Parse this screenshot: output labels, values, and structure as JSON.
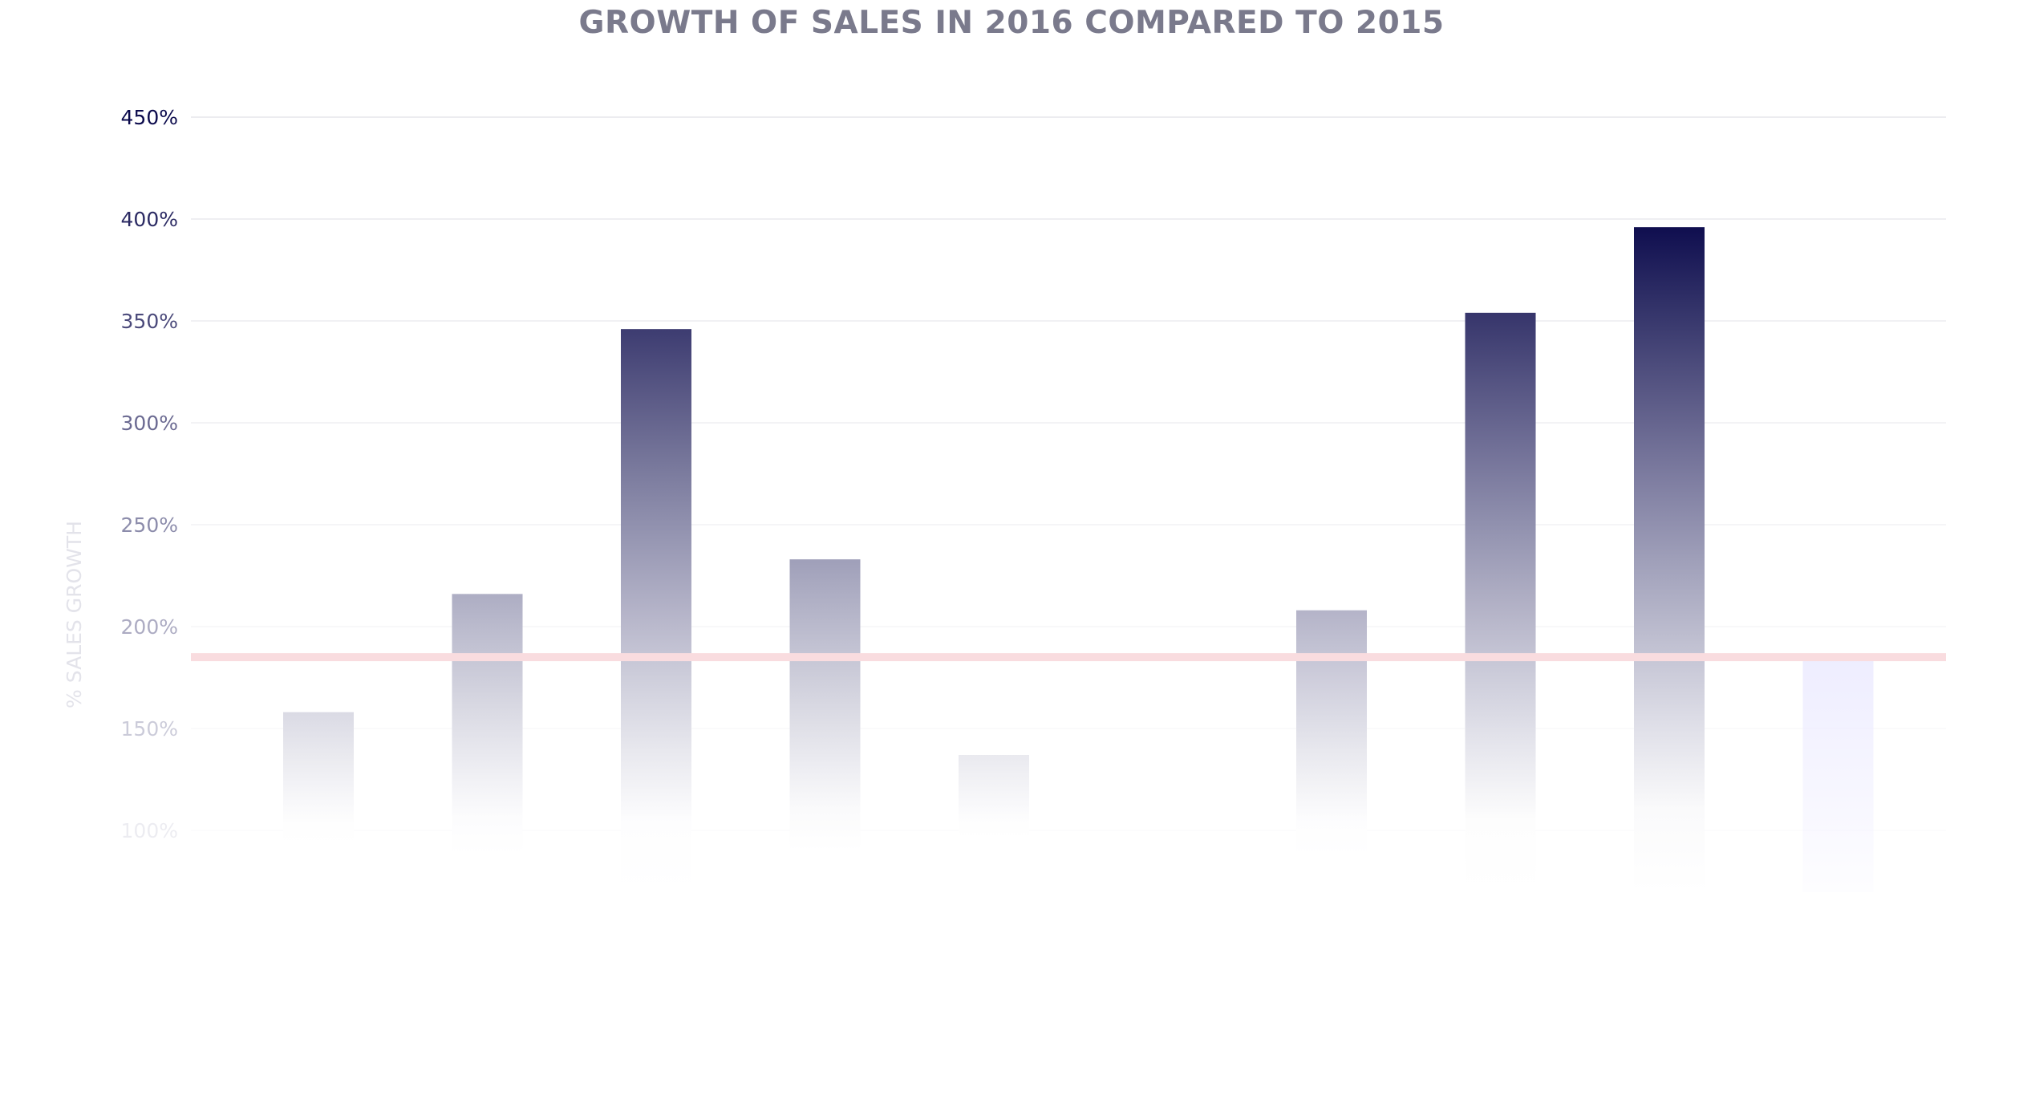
{
  "chart_data": {
    "type": "bar",
    "title": "GROWTH OF SALES IN 2016 COMPARED TO 2015",
    "ylabel": "% SALES GROWTH",
    "xlabel": "",
    "ylim": [
      65,
      450
    ],
    "yticks": [
      {
        "value": 450,
        "label": "450%"
      },
      {
        "value": 400,
        "label": "400%"
      },
      {
        "value": 350,
        "label": "350%"
      },
      {
        "value": 300,
        "label": "300%"
      },
      {
        "value": 250,
        "label": "250%"
      },
      {
        "value": 200,
        "label": "200%"
      },
      {
        "value": 150,
        "label": "150%"
      },
      {
        "value": 100,
        "label": "100%"
      }
    ],
    "values": [
      158,
      216,
      346,
      233,
      137,
      95,
      208,
      354,
      396,
      185
    ],
    "reference_line": {
      "value": 185,
      "color": "#f9dcdf"
    },
    "grid": true,
    "colors": {
      "title": "#7a7a8c",
      "bar_dark": "#0b0a4c",
      "bar_light": "#f1f0fb",
      "grid": "#ececf0"
    }
  }
}
